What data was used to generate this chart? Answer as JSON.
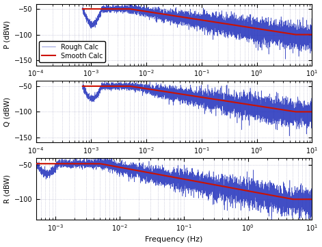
{
  "subplots": [
    {
      "ylabel": "P (dBW)",
      "xlim": [
        0.0001,
        10
      ],
      "ylim": [
        -160,
        -40
      ],
      "yticks": [
        -150,
        -100,
        -50
      ],
      "show_xlabel": false,
      "show_legend": true,
      "xstart": 0.0007,
      "smooth_peak": -50,
      "smooth_noise_floor": -100,
      "rough_noise_floor": -115,
      "rough_dip_depth": 30,
      "rough_noise_scale_low": 3,
      "rough_noise_scale_high": 12
    },
    {
      "ylabel": "Q (dBW)",
      "xlim": [
        0.0001,
        10
      ],
      "ylim": [
        -160,
        -40
      ],
      "yticks": [
        -150,
        -100,
        -50
      ],
      "show_xlabel": false,
      "show_legend": false,
      "xstart": 0.0007,
      "smooth_peak": -50,
      "smooth_noise_floor": -100,
      "rough_noise_floor": -120,
      "rough_dip_depth": 25,
      "rough_noise_scale_low": 3,
      "rough_noise_scale_high": 12
    },
    {
      "ylabel": "R (dBW)",
      "xlim": [
        0.0005,
        10
      ],
      "ylim": [
        -130,
        -40
      ],
      "yticks": [
        -100,
        -50
      ],
      "show_xlabel": true,
      "show_legend": false,
      "xstart": 0.0005,
      "smooth_peak": -48,
      "smooth_noise_floor": -100,
      "rough_noise_floor": -115,
      "rough_dip_depth": 15,
      "rough_noise_scale_low": 3,
      "rough_noise_scale_high": 10
    }
  ],
  "xlabel": "Frequency (Hz)",
  "rough_color": "#1F2FBB",
  "smooth_color": "#CC1100",
  "rough_label": "Rough Calc",
  "smooth_label": "Smooth Calc",
  "background_color": "#FFFFFF",
  "grid_color": "#9999BB",
  "figsize": [
    4.71,
    3.61
  ],
  "dpi": 100
}
